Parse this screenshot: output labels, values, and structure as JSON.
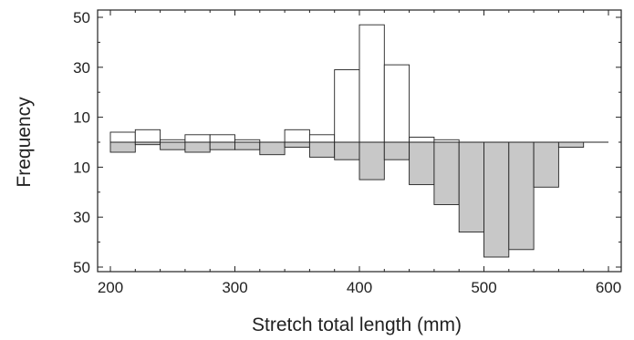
{
  "chart_data": {
    "type": "bar",
    "subtype": "back-to-back histogram",
    "xlabel": "Stretch total length (mm)",
    "ylabel": "Frequency",
    "xlim": [
      200,
      600
    ],
    "x_ticks": [
      200,
      300,
      400,
      500,
      600
    ],
    "y_ticks": [
      {
        "label": "50",
        "value": 50
      },
      {
        "label": "30",
        "value": 30
      },
      {
        "label": "10",
        "value": 10
      },
      {
        "label": "10",
        "value": -10
      },
      {
        "label": "30",
        "value": -30
      },
      {
        "label": "50",
        "value": -50
      }
    ],
    "ylim": [
      -52,
      52
    ],
    "bin_width": 20,
    "bin_starts": [
      200,
      220,
      240,
      260,
      280,
      300,
      320,
      340,
      360,
      380,
      400,
      420,
      440,
      460,
      480,
      500,
      520,
      540,
      560,
      580
    ],
    "grid": false,
    "legend": "none",
    "series": [
      {
        "direction": "up",
        "fill": "#ffffff",
        "values": [
          4,
          5,
          1,
          3,
          3,
          1,
          0,
          5,
          3,
          29,
          47,
          31,
          2,
          1,
          0,
          0,
          0,
          0,
          0,
          0
        ]
      },
      {
        "direction": "down",
        "fill": "#c8c8c8",
        "values": [
          4,
          1,
          3,
          4,
          3,
          3,
          5,
          2,
          6,
          7,
          15,
          7,
          17,
          25,
          36,
          46,
          43,
          18,
          2,
          0
        ]
      }
    ]
  }
}
